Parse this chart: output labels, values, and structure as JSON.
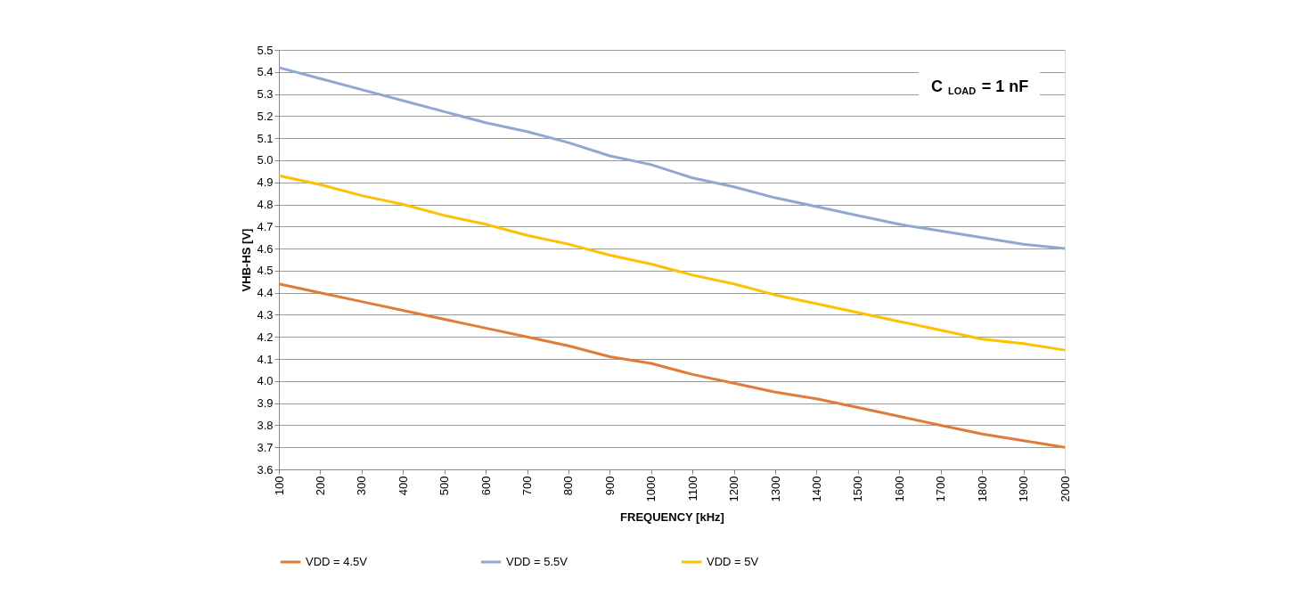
{
  "chart_data": {
    "type": "line",
    "xlabel": "FREQUENCY [kHz]",
    "ylabel": "VHB-HS [V]",
    "annotations": [
      "C$_{LOAD}$ = 1 nF"
    ],
    "x": [
      100,
      200,
      300,
      400,
      500,
      600,
      700,
      800,
      900,
      1000,
      1100,
      1200,
      1300,
      1400,
      1500,
      1600,
      1700,
      1800,
      1900,
      2000
    ],
    "series": [
      {
        "name": "VDD = 4.5V",
        "color": "#e07b39",
        "values": [
          4.44,
          4.4,
          4.36,
          4.32,
          4.28,
          4.24,
          4.2,
          4.16,
          4.11,
          4.08,
          4.03,
          3.99,
          3.95,
          3.92,
          3.88,
          3.84,
          3.8,
          3.76,
          3.73,
          3.7
        ]
      },
      {
        "name": "VDD = 5.5V",
        "color": "#8fa8d0",
        "values": [
          5.42,
          5.37,
          5.32,
          5.27,
          5.22,
          5.17,
          5.13,
          5.08,
          5.02,
          4.98,
          4.92,
          4.88,
          4.83,
          4.79,
          4.75,
          4.71,
          4.68,
          4.65,
          4.62,
          4.6
        ]
      },
      {
        "name": "VDD = 5V",
        "color": "#ffc000",
        "values": [
          4.93,
          4.89,
          4.84,
          4.8,
          4.75,
          4.71,
          4.66,
          4.62,
          4.57,
          4.53,
          4.48,
          4.44,
          4.39,
          4.35,
          4.31,
          4.27,
          4.23,
          4.19,
          4.17,
          4.14
        ]
      }
    ],
    "xlim": [
      100,
      2000
    ],
    "xticks": [
      100,
      200,
      300,
      400,
      500,
      600,
      700,
      800,
      900,
      1000,
      1100,
      1200,
      1300,
      1400,
      1500,
      1600,
      1700,
      1800,
      1900,
      2000
    ],
    "ylim": [
      3.6,
      5.5
    ],
    "yticks": [
      3.6,
      3.7,
      3.8,
      3.9,
      {
        "value": 4.0,
        "label": "4.0"
      },
      4.1,
      4.2,
      4.3,
      4.4,
      4.5,
      4.6,
      4.7,
      4.8,
      4.9,
      {
        "value": 5.0,
        "label": "5.0"
      },
      5.1,
      5.2,
      5.3,
      5.4,
      5.5
    ],
    "grid": "y",
    "legend": "bottom",
    "marker": "none",
    "line_style": "solid"
  }
}
